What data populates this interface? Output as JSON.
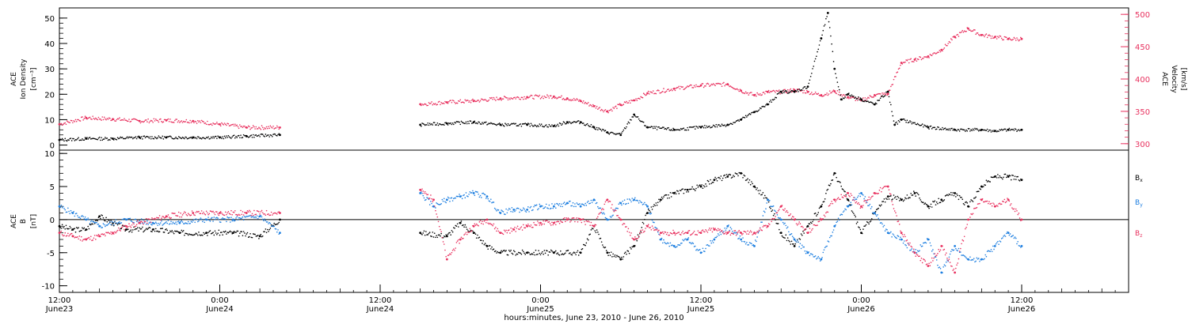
{
  "colors": {
    "black": "#000000",
    "blue": "#1e7fe0",
    "pink": "#e8305e",
    "frame": "#000000"
  },
  "x_axis": {
    "label": "hours:minutes, June 23, 2010 - June 26, 2010",
    "range_hours": [
      0,
      80
    ],
    "ticks": [
      {
        "hour": 0,
        "time": "12:00",
        "date": "June23"
      },
      {
        "hour": 12,
        "time": "0:00",
        "date": "June24"
      },
      {
        "hour": 24,
        "time": "12:00",
        "date": "June24"
      },
      {
        "hour": 36,
        "time": "0:00",
        "date": "June25"
      },
      {
        "hour": 48,
        "time": "12:00",
        "date": "June25"
      },
      {
        "hour": 60,
        "time": "0:00",
        "date": "June26"
      },
      {
        "hour": 72,
        "time": "12:00",
        "date": "June26"
      }
    ]
  },
  "chart_data": [
    {
      "type": "scatter",
      "panel": "top",
      "ylabel_left": [
        "ACE",
        "Ion Density",
        "[cm⁻³]"
      ],
      "ylabel_right": [
        "ACE",
        "Velocity",
        "[km/s]"
      ],
      "ylim_left": [
        -2,
        54
      ],
      "ylim_right": [
        290,
        510
      ],
      "yticks_left": [
        0,
        10,
        20,
        30,
        40,
        50
      ],
      "yticks_right": [
        300,
        350,
        400,
        450,
        500
      ],
      "grid": false,
      "series": [
        {
          "axis": "left",
          "color": "#000000",
          "points": [
            [
              0,
              2
            ],
            [
              2,
              2.5
            ],
            [
              4,
              2.5
            ],
            [
              6,
              3
            ],
            [
              8,
              3
            ],
            [
              10,
              3
            ],
            [
              12,
              3
            ],
            [
              14,
              3.5
            ],
            [
              16.5,
              4
            ],
            [
              27,
              8
            ],
            [
              29,
              8.5
            ],
            [
              31,
              9
            ],
            [
              33,
              8
            ],
            [
              35,
              8
            ],
            [
              37,
              7.5
            ],
            [
              38,
              9
            ],
            [
              39,
              9
            ],
            [
              40,
              7
            ],
            [
              41,
              5
            ],
            [
              42,
              4
            ],
            [
              43,
              12
            ],
            [
              44,
              7
            ],
            [
              46,
              6
            ],
            [
              48,
              7
            ],
            [
              50,
              8
            ],
            [
              51,
              10
            ],
            [
              52,
              13
            ],
            [
              53,
              16
            ],
            [
              54,
              21
            ],
            [
              55,
              21
            ],
            [
              56,
              23
            ],
            [
              57,
              42
            ],
            [
              57.5,
              52
            ],
            [
              58,
              30
            ],
            [
              58.5,
              18
            ],
            [
              59,
              20
            ],
            [
              60,
              18
            ],
            [
              61,
              16
            ],
            [
              62,
              21
            ],
            [
              62.5,
              8
            ],
            [
              63,
              10
            ],
            [
              65,
              7
            ],
            [
              67,
              6
            ],
            [
              69,
              6
            ],
            [
              70,
              5.5
            ],
            [
              71,
              6
            ],
            [
              72,
              6
            ]
          ]
        },
        {
          "axis": "right",
          "color": "#e8305e",
          "points": [
            [
              0,
              330
            ],
            [
              2,
              340
            ],
            [
              4,
              338
            ],
            [
              6,
              335
            ],
            [
              8,
              336
            ],
            [
              10,
              335
            ],
            [
              12,
              330
            ],
            [
              14,
              325
            ],
            [
              16.5,
              325
            ],
            [
              27,
              361
            ],
            [
              29,
              364
            ],
            [
              31,
              366
            ],
            [
              33,
              370
            ],
            [
              35,
              372
            ],
            [
              37,
              373
            ],
            [
              38,
              370
            ],
            [
              39,
              366
            ],
            [
              40,
              358
            ],
            [
              41,
              350
            ],
            [
              42,
              360
            ],
            [
              43,
              367
            ],
            [
              44,
              378
            ],
            [
              46,
              385
            ],
            [
              48,
              390
            ],
            [
              50,
              392
            ],
            [
              51,
              382
            ],
            [
              52,
              375
            ],
            [
              53,
              380
            ],
            [
              54,
              380
            ],
            [
              55,
              383
            ],
            [
              56,
              380
            ],
            [
              57,
              375
            ],
            [
              58,
              381
            ],
            [
              59,
              372
            ],
            [
              60,
              367
            ],
            [
              61,
              375
            ],
            [
              62,
              377
            ],
            [
              63,
              425
            ],
            [
              64,
              430
            ],
            [
              65,
              435
            ],
            [
              66,
              445
            ],
            [
              67,
              465
            ],
            [
              68,
              478
            ],
            [
              69,
              468
            ],
            [
              70,
              465
            ],
            [
              71,
              462
            ],
            [
              72,
              462
            ]
          ]
        }
      ]
    },
    {
      "type": "scatter",
      "panel": "bottom",
      "ylabel_left": [
        "ACE",
        "B",
        "[nT]"
      ],
      "ylim": [
        -11,
        10.5
      ],
      "yticks": [
        -10,
        -5,
        0,
        5,
        10
      ],
      "zero_line": true,
      "legend": [
        "Bx",
        "By",
        "Bz"
      ],
      "legend_placement": "right",
      "series": [
        {
          "name": "Bx",
          "color": "#000000",
          "points": [
            [
              0,
              -1
            ],
            [
              1,
              -1.5
            ],
            [
              2,
              -1.5
            ],
            [
              3,
              0.5
            ],
            [
              4,
              -0.5
            ],
            [
              5,
              -1.5
            ],
            [
              7,
              -1.5
            ],
            [
              9,
              -2
            ],
            [
              11,
              -2
            ],
            [
              13,
              -2
            ],
            [
              15,
              -2.5
            ],
            [
              16.5,
              0
            ],
            [
              27,
              -2
            ],
            [
              29,
              -2.5
            ],
            [
              30,
              -0.5
            ],
            [
              31,
              -2
            ],
            [
              32,
              -4
            ],
            [
              33,
              -5
            ],
            [
              35,
              -5
            ],
            [
              37,
              -5
            ],
            [
              39,
              -5
            ],
            [
              40,
              -1
            ],
            [
              41,
              -5
            ],
            [
              42,
              -6
            ],
            [
              43,
              -4
            ],
            [
              44,
              1
            ],
            [
              45,
              3
            ],
            [
              46,
              4
            ],
            [
              47,
              4.5
            ],
            [
              48,
              5
            ],
            [
              49,
              6
            ],
            [
              50,
              6.5
            ],
            [
              51,
              7
            ],
            [
              52,
              5
            ],
            [
              53,
              3
            ],
            [
              54,
              -2
            ],
            [
              55,
              -4
            ],
            [
              56,
              -1
            ],
            [
              57,
              2
            ],
            [
              58,
              7
            ],
            [
              59,
              3
            ],
            [
              60,
              -2
            ],
            [
              61,
              1
            ],
            [
              62,
              3.5
            ],
            [
              63,
              3
            ],
            [
              64,
              4
            ],
            [
              65,
              2
            ],
            [
              66,
              3
            ],
            [
              67,
              4
            ],
            [
              68,
              2
            ],
            [
              69,
              5
            ],
            [
              70,
              6.5
            ],
            [
              71,
              6.5
            ],
            [
              72,
              6
            ]
          ]
        },
        {
          "name": "By",
          "color": "#1e7fe0",
          "points": [
            [
              0,
              2
            ],
            [
              1,
              1
            ],
            [
              2,
              0
            ],
            [
              3,
              -1
            ],
            [
              5,
              0
            ],
            [
              7,
              -0.5
            ],
            [
              9,
              -0.5
            ],
            [
              11,
              0
            ],
            [
              13,
              0
            ],
            [
              15,
              0.5
            ],
            [
              16.5,
              -2
            ],
            [
              27,
              4
            ],
            [
              28,
              2
            ],
            [
              29,
              3
            ],
            [
              30,
              3.5
            ],
            [
              31,
              4
            ],
            [
              32,
              3.5
            ],
            [
              33,
              1
            ],
            [
              34,
              1.5
            ],
            [
              35,
              1.5
            ],
            [
              36,
              2
            ],
            [
              37,
              2
            ],
            [
              38,
              2.5
            ],
            [
              39,
              2
            ],
            [
              40,
              3
            ],
            [
              41,
              0
            ],
            [
              42,
              2.5
            ],
            [
              43,
              3
            ],
            [
              44,
              2
            ],
            [
              45,
              -3
            ],
            [
              46,
              -4
            ],
            [
              47,
              -3
            ],
            [
              48,
              -5
            ],
            [
              49,
              -3
            ],
            [
              50,
              -1
            ],
            [
              51,
              -3
            ],
            [
              52,
              -4
            ],
            [
              53,
              3
            ],
            [
              54,
              0
            ],
            [
              55,
              -3
            ],
            [
              56,
              -5
            ],
            [
              57,
              -6
            ],
            [
              58,
              -1
            ],
            [
              59,
              2
            ],
            [
              60,
              4
            ],
            [
              61,
              1
            ],
            [
              62,
              -2
            ],
            [
              63,
              -3
            ],
            [
              64,
              -5
            ],
            [
              65,
              -3
            ],
            [
              66,
              -8
            ],
            [
              67,
              -4
            ],
            [
              68,
              -6
            ],
            [
              69,
              -6
            ],
            [
              70,
              -4
            ],
            [
              71,
              -2
            ],
            [
              72,
              -4
            ]
          ]
        },
        {
          "name": "Bz",
          "color": "#e8305e",
          "points": [
            [
              0,
              -2
            ],
            [
              1,
              -2.5
            ],
            [
              2,
              -3
            ],
            [
              3,
              -2.5
            ],
            [
              4,
              -2
            ],
            [
              5,
              -1
            ],
            [
              6,
              -0.5
            ],
            [
              8,
              0.5
            ],
            [
              10,
              1
            ],
            [
              12,
              1
            ],
            [
              14,
              1
            ],
            [
              16.5,
              1
            ],
            [
              27,
              4.5
            ],
            [
              28,
              3
            ],
            [
              29,
              -6
            ],
            [
              30,
              -3
            ],
            [
              31,
              -1
            ],
            [
              32,
              0
            ],
            [
              33,
              -2
            ],
            [
              34,
              -1.5
            ],
            [
              35,
              -1
            ],
            [
              36,
              -0.5
            ],
            [
              37,
              -0.5
            ],
            [
              38,
              0
            ],
            [
              39,
              0
            ],
            [
              40,
              -1
            ],
            [
              41,
              3
            ],
            [
              42,
              0
            ],
            [
              43,
              -3
            ],
            [
              44,
              -1
            ],
            [
              45,
              -2
            ],
            [
              46,
              -2
            ],
            [
              47,
              -2
            ],
            [
              48,
              -2
            ],
            [
              49,
              -1.5
            ],
            [
              50,
              -2
            ],
            [
              51,
              -2
            ],
            [
              52,
              -2
            ],
            [
              53,
              -1
            ],
            [
              54,
              2
            ],
            [
              55,
              0
            ],
            [
              56,
              -2
            ],
            [
              57,
              0
            ],
            [
              58,
              3
            ],
            [
              59,
              4
            ],
            [
              60,
              2
            ],
            [
              61,
              4
            ],
            [
              62,
              5
            ],
            [
              63,
              -2
            ],
            [
              64,
              -5
            ],
            [
              65,
              -7
            ],
            [
              66,
              -4
            ],
            [
              67,
              -8
            ],
            [
              68,
              0
            ],
            [
              69,
              3
            ],
            [
              70,
              2
            ],
            [
              71,
              3
            ],
            [
              72,
              0
            ]
          ]
        }
      ]
    }
  ]
}
